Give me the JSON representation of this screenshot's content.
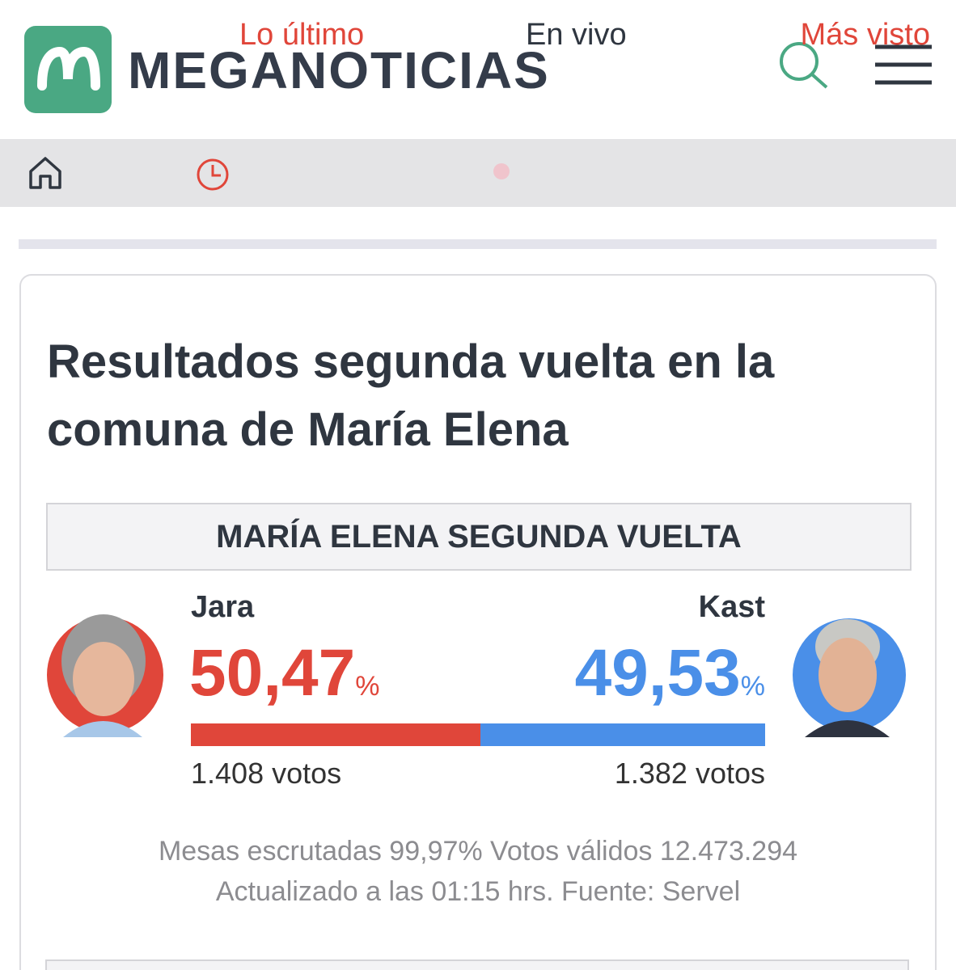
{
  "header": {
    "brand": "MEGANOTICIAS"
  },
  "nav": {
    "items": [
      "Lo último",
      "En vivo",
      "Más visto"
    ]
  },
  "card": {
    "title": "Resultados segunda vuelta en la comuna de María Elena",
    "box_title": "MARÍA ELENA SEGUNDA VUELTA",
    "candidates": [
      {
        "name": "Jara",
        "percent": {
          "value": 50.47,
          "label": "50,47"
        },
        "unit": "%",
        "votes": "1.408 votos",
        "color": "#e0463a"
      },
      {
        "name": "Kast",
        "percent": {
          "value": 49.53,
          "label": "49,53"
        },
        "unit": "%",
        "votes": "1.382 votos",
        "color": "#4a8fe8"
      }
    ],
    "footer": [
      "Mesas escrutadas 99,97% Votos válidos 12.473.294",
      "Actualizado a las 01:15 hrs. Fuente: Servel"
    ]
  }
}
